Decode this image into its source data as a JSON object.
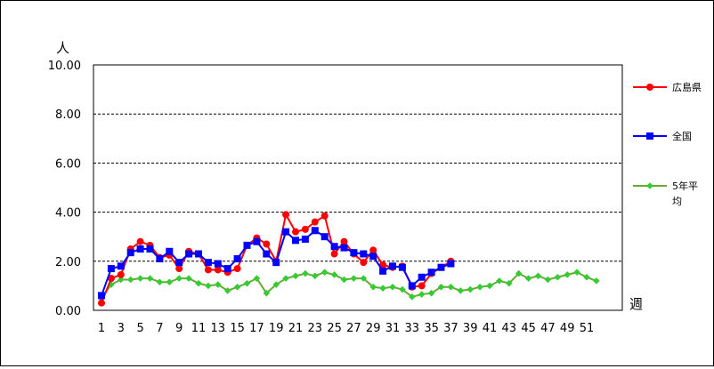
{
  "chart_data": {
    "type": "line",
    "y_unit": "人",
    "x_unit": "週",
    "ylim": [
      0,
      10
    ],
    "y_ticks": [
      "0.00",
      "2.00",
      "4.00",
      "6.00",
      "8.00",
      "10.00"
    ],
    "x_tick_labels": [
      "1",
      "3",
      "5",
      "7",
      "9",
      "11",
      "13",
      "15",
      "17",
      "19",
      "21",
      "23",
      "25",
      "27",
      "29",
      "31",
      "33",
      "35",
      "37",
      "39",
      "41",
      "43",
      "45",
      "47",
      "49",
      "51"
    ],
    "xlim": [
      1,
      52
    ],
    "grid": "horizontal-dashed",
    "legend_position": "right",
    "series": [
      {
        "name": "広島県",
        "color": "#ff0000",
        "line_color": "#ff0000",
        "marker": "circle",
        "x": [
          1,
          2,
          3,
          4,
          5,
          6,
          7,
          8,
          9,
          10,
          11,
          12,
          13,
          14,
          15,
          16,
          17,
          18,
          19,
          20,
          21,
          22,
          23,
          24,
          25,
          26,
          27,
          28,
          29,
          30,
          31,
          32,
          33,
          34,
          35,
          36,
          37
        ],
        "values": [
          0.3,
          1.3,
          1.45,
          2.5,
          2.8,
          2.65,
          2.15,
          2.25,
          1.7,
          2.4,
          2.3,
          1.65,
          1.65,
          1.55,
          1.7,
          2.65,
          2.95,
          2.7,
          2.0,
          3.9,
          3.2,
          3.3,
          3.6,
          3.85,
          2.3,
          2.8,
          2.3,
          1.95,
          2.45,
          1.85,
          1.75,
          1.8,
          0.95,
          1.0,
          1.5,
          1.75,
          2.0
        ]
      },
      {
        "name": "全国",
        "color": "#0000ff",
        "line_color": "#0000ff",
        "marker": "square",
        "x": [
          1,
          2,
          3,
          4,
          5,
          6,
          7,
          8,
          9,
          10,
          11,
          12,
          13,
          14,
          15,
          16,
          17,
          18,
          19,
          20,
          21,
          22,
          23,
          24,
          25,
          26,
          27,
          28,
          29,
          30,
          31,
          32,
          33,
          34,
          35,
          36,
          37
        ],
        "values": [
          0.6,
          1.7,
          1.8,
          2.35,
          2.5,
          2.5,
          2.1,
          2.4,
          1.95,
          2.3,
          2.3,
          1.95,
          1.9,
          1.7,
          2.1,
          2.65,
          2.8,
          2.3,
          1.95,
          3.2,
          2.85,
          2.9,
          3.25,
          3.0,
          2.6,
          2.55,
          2.35,
          2.3,
          2.2,
          1.6,
          1.8,
          1.75,
          1.0,
          1.35,
          1.55,
          1.75,
          1.9
        ]
      },
      {
        "name": "5年平均",
        "color": "#33cc33",
        "line_color": "#66aa33",
        "marker": "diamond",
        "x": [
          1,
          2,
          3,
          4,
          5,
          6,
          7,
          8,
          9,
          10,
          11,
          12,
          13,
          14,
          15,
          16,
          17,
          18,
          19,
          20,
          21,
          22,
          23,
          24,
          25,
          26,
          27,
          28,
          29,
          30,
          31,
          32,
          33,
          34,
          35,
          36,
          37,
          38,
          39,
          40,
          41,
          42,
          43,
          44,
          45,
          46,
          47,
          48,
          49,
          50,
          51,
          52
        ],
        "values": [
          0.5,
          1.05,
          1.25,
          1.25,
          1.3,
          1.3,
          1.15,
          1.15,
          1.3,
          1.3,
          1.1,
          1.0,
          1.05,
          0.8,
          0.95,
          1.1,
          1.3,
          0.7,
          1.05,
          1.3,
          1.4,
          1.5,
          1.4,
          1.55,
          1.45,
          1.25,
          1.3,
          1.3,
          0.95,
          0.9,
          0.95,
          0.85,
          0.55,
          0.65,
          0.7,
          0.95,
          0.95,
          0.8,
          0.85,
          0.95,
          1.0,
          1.2,
          1.1,
          1.5,
          1.3,
          1.4,
          1.25,
          1.35,
          1.45,
          1.55,
          1.35,
          1.2
        ]
      }
    ]
  }
}
